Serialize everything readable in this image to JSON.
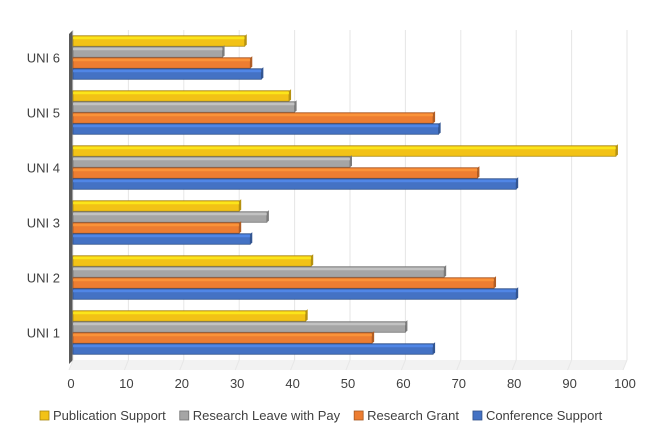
{
  "chart_data": {
    "type": "bar",
    "orientation": "horizontal",
    "style": "3d",
    "categories": [
      "UNI 1",
      "UNI 2",
      "UNI 3",
      "UNI 4",
      "UNI 5",
      "UNI 6"
    ],
    "series": [
      {
        "name": "Publication Support",
        "color": "#f2c216",
        "values": [
          42,
          43,
          30,
          98,
          39,
          31
        ]
      },
      {
        "name": "Research Leave with Pay",
        "color": "#a5a5a5",
        "values": [
          60,
          67,
          35,
          50,
          40,
          27
        ]
      },
      {
        "name": "Research Grant",
        "color": "#ed7d31",
        "values": [
          54,
          76,
          30,
          73,
          65,
          32
        ]
      },
      {
        "name": "Conference Support",
        "color": "#4472c4",
        "values": [
          65,
          80,
          32,
          80,
          66,
          34
        ]
      }
    ],
    "xlim": [
      0,
      100
    ],
    "xticks": [
      "0",
      "10",
      "20",
      "30",
      "40",
      "50",
      "60",
      "70",
      "80",
      "90",
      "100"
    ],
    "grid": true,
    "legend": "bottom"
  }
}
